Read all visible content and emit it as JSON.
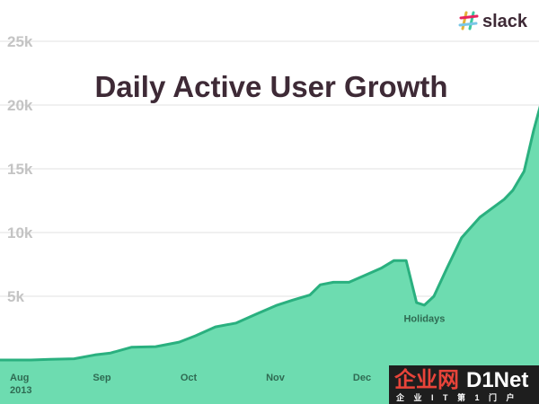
{
  "chart_data": {
    "type": "area",
    "title": "Daily Active User Growth",
    "xlabel": "",
    "ylabel": "",
    "ylim": [
      0,
      27000
    ],
    "y_ticks": [
      {
        "value": 5000,
        "label": "5k"
      },
      {
        "value": 10000,
        "label": "10k"
      },
      {
        "value": 15000,
        "label": "15k"
      },
      {
        "value": 20000,
        "label": "20k"
      },
      {
        "value": 25000,
        "label": "25k"
      }
    ],
    "x_ticks": [
      {
        "x": 0,
        "label": "Aug",
        "label2": "2013"
      },
      {
        "x": 1,
        "label": "Sep"
      },
      {
        "x": 2,
        "label": "Oct"
      },
      {
        "x": 3,
        "label": "Nov"
      },
      {
        "x": 4,
        "label": "Dec"
      }
    ],
    "series": [
      {
        "name": "",
        "color": "#6ddcb0",
        "line_color": "#2ab07f",
        "points": [
          [
            -0.21,
            0
          ],
          [
            0.2,
            0
          ],
          [
            0.42,
            50
          ],
          [
            0.7,
            100
          ],
          [
            0.94,
            400
          ],
          [
            1.12,
            550
          ],
          [
            1.36,
            1000
          ],
          [
            1.64,
            1050
          ],
          [
            1.91,
            1400
          ],
          [
            2.1,
            1900
          ],
          [
            2.33,
            2600
          ],
          [
            2.57,
            2900
          ],
          [
            2.8,
            3600
          ],
          [
            3.04,
            4300
          ],
          [
            3.22,
            4700
          ],
          [
            3.42,
            5100
          ],
          [
            3.54,
            5900
          ],
          [
            3.69,
            6100
          ],
          [
            3.87,
            6100
          ],
          [
            4.04,
            6600
          ],
          [
            4.24,
            7200
          ],
          [
            4.39,
            7800
          ],
          [
            4.53,
            7800
          ],
          [
            4.65,
            4500
          ],
          [
            4.74,
            4300
          ],
          [
            4.85,
            5000
          ],
          [
            5.0,
            7200
          ],
          [
            5.17,
            9600
          ],
          [
            5.38,
            11200
          ],
          [
            5.56,
            12100
          ],
          [
            5.66,
            12600
          ],
          [
            5.76,
            13300
          ],
          [
            5.89,
            14800
          ],
          [
            6.0,
            18000
          ],
          [
            6.08,
            20000
          ]
        ]
      }
    ],
    "annotations": [
      {
        "text": "Holidays",
        "x": 4.74,
        "y": 3000
      }
    ]
  },
  "logo": {
    "text": "slack",
    "icon": "slack-hash-icon"
  },
  "watermark": {
    "line1_a": "企业网",
    "line1_b": "D1Net",
    "line2": "企 业 I T 第 1 门 户"
  }
}
